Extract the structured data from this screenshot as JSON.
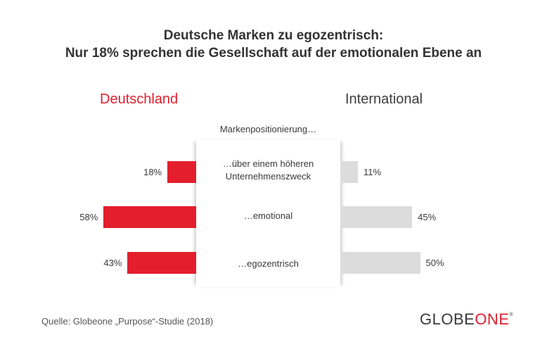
{
  "chart_data": {
    "type": "bar",
    "orientation": "horizontal-diverging",
    "title": "Deutsche Marken zu egozentrisch:",
    "subtitle": "Nur 18% sprechen die Gesellschaft auf der emotionalen Ebene an",
    "category_header": "Markenpositionierung…",
    "categories": [
      "…über einem höheren\nUnternehmenszweck",
      "…emotional",
      "…egozentrisch"
    ],
    "series": [
      {
        "name": "Deutschland",
        "values": [
          18,
          58,
          43
        ],
        "labels": [
          "18%",
          "58%",
          "43%"
        ],
        "color": "#e31e2d",
        "side": "left"
      },
      {
        "name": "International",
        "values": [
          11,
          45,
          50
        ],
        "labels": [
          "11%",
          "45%",
          "50%"
        ],
        "color": "#dcdcdc",
        "side": "right"
      }
    ],
    "unit": "%",
    "grid": false
  },
  "source": "Quelle: Globeone „Purpose“-Studie (2018)",
  "logo": {
    "part1": "GLOBE",
    "part2": "ONE",
    "mark": "®"
  }
}
